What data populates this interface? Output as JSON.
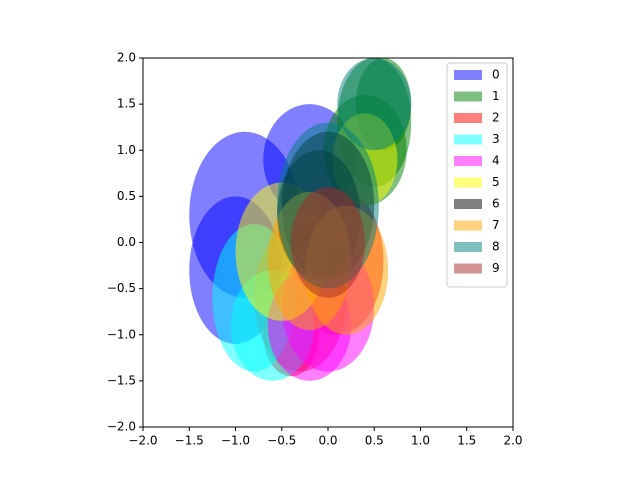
{
  "chart_data": {
    "type": "ellipse",
    "xlim": [
      -2,
      2
    ],
    "ylim": [
      -2,
      2
    ],
    "xticks": [
      {
        "value": -2,
        "label": "−2.0"
      },
      {
        "value": -1.5,
        "label": "−1.5"
      },
      {
        "value": -1,
        "label": "−1.0"
      },
      {
        "value": -0.5,
        "label": "−0.5"
      },
      {
        "value": 0,
        "label": "0.0"
      },
      {
        "value": 0.5,
        "label": "0.5"
      },
      {
        "value": 1,
        "label": "1.0"
      },
      {
        "value": 1.5,
        "label": "1.5"
      },
      {
        "value": 2,
        "label": "2.0"
      }
    ],
    "yticks": [
      {
        "value": -2,
        "label": "−2.0"
      },
      {
        "value": -1.5,
        "label": "−1.5"
      },
      {
        "value": -1,
        "label": "−1.0"
      },
      {
        "value": -0.5,
        "label": "−0.5"
      },
      {
        "value": 0,
        "label": "0.0"
      },
      {
        "value": 0.5,
        "label": "0.5"
      },
      {
        "value": 1,
        "label": "1.0"
      },
      {
        "value": 1.5,
        "label": "1.5"
      },
      {
        "value": 2,
        "label": "2.0"
      }
    ],
    "legend": "upper right",
    "opacity": 0.5,
    "series": [
      {
        "name": "0",
        "color": "#0000ff",
        "x": [
          -0.9,
          -1.0,
          -0.2
        ],
        "y": [
          0.3,
          -0.3,
          0.9
        ],
        "width": [
          1.2,
          1.0,
          1.0
        ],
        "height": [
          1.8,
          1.6,
          1.2
        ]
      },
      {
        "name": "1",
        "color": "#008000",
        "x": [
          0.5,
          0.4,
          0.6
        ],
        "y": [
          1.3,
          1.0,
          1.5
        ],
        "width": [
          0.8,
          0.9,
          0.6
        ],
        "height": [
          1.4,
          1.2,
          1.0
        ]
      },
      {
        "name": "2",
        "color": "#ff0000",
        "x": [
          -0.3,
          0.1,
          -0.4
        ],
        "y": [
          -0.6,
          -0.2,
          -1.0
        ],
        "width": [
          1.0,
          1.0,
          0.6
        ],
        "height": [
          1.6,
          1.6,
          0.9
        ]
      },
      {
        "name": "3",
        "color": "#00ffff",
        "x": [
          -0.8,
          -0.6
        ],
        "y": [
          -0.6,
          -0.9
        ],
        "width": [
          0.9,
          0.9
        ],
        "height": [
          1.6,
          1.2
        ]
      },
      {
        "name": "4",
        "color": "#ff00ff",
        "x": [
          0.0,
          -0.2
        ],
        "y": [
          -0.7,
          -0.9
        ],
        "width": [
          1.0,
          0.9
        ],
        "height": [
          1.4,
          1.2
        ]
      },
      {
        "name": "5",
        "color": "#ffff00",
        "x": [
          -0.5,
          0.4
        ],
        "y": [
          -0.1,
          0.9
        ],
        "width": [
          1.0,
          0.7
        ],
        "height": [
          1.5,
          1.0
        ]
      },
      {
        "name": "6",
        "color": "#000000",
        "x": [
          0.0,
          -0.1
        ],
        "y": [
          0.4,
          0.3
        ],
        "width": [
          1.0,
          0.9
        ],
        "height": [
          1.6,
          1.4
        ]
      },
      {
        "name": "7",
        "color": "#ffa500",
        "x": [
          0.2,
          -0.2
        ],
        "y": [
          -0.3,
          -0.2
        ],
        "width": [
          0.9,
          0.9
        ],
        "height": [
          1.4,
          1.5
        ]
      },
      {
        "name": "8",
        "color": "#008080",
        "x": [
          0.0,
          0.5
        ],
        "y": [
          0.4,
          1.5
        ],
        "width": [
          1.1,
          0.8
        ],
        "height": [
          1.8,
          1.0
        ]
      },
      {
        "name": "9",
        "color": "#a52a2a",
        "x": [
          0.0
        ],
        "y": [
          0.0
        ],
        "width": [
          0.8
        ],
        "height": [
          1.2
        ]
      }
    ]
  }
}
